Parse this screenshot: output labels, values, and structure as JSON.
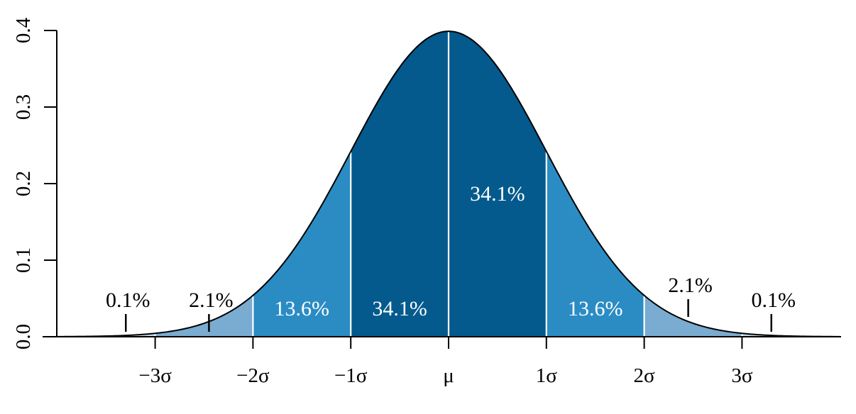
{
  "chart_data": {
    "type": "area",
    "title": "",
    "xlabel": "",
    "ylabel": "",
    "xlim": [
      -4,
      4
    ],
    "ylim": [
      0,
      0.4
    ],
    "curve": "standard normal density",
    "y_ticks": [
      "0.0",
      "0.1",
      "0.2",
      "0.3",
      "0.4"
    ],
    "x_ticks": [
      {
        "x": -3,
        "label": "−3σ"
      },
      {
        "x": -2,
        "label": "−2σ"
      },
      {
        "x": -1,
        "label": "−1σ"
      },
      {
        "x": 0,
        "label": "μ"
      },
      {
        "x": 1,
        "label": "1σ"
      },
      {
        "x": 2,
        "label": "2σ"
      },
      {
        "x": 3,
        "label": "3σ"
      }
    ],
    "regions": [
      {
        "from": -4,
        "to": -3,
        "label": "0.1%",
        "label_x": -3.3,
        "placement": "outside",
        "color": "#c5dbea"
      },
      {
        "from": -3,
        "to": -2,
        "label": "2.1%",
        "label_x": -2.45,
        "placement": "outside",
        "color": "#7aabd0"
      },
      {
        "from": -2,
        "to": -1,
        "label": "13.6%",
        "label_x": -1.5,
        "placement": "inside",
        "color": "#2b8cc4"
      },
      {
        "from": -1,
        "to": 0,
        "label": "34.1%",
        "label_x": -0.5,
        "placement": "inside",
        "color": "#045a8d"
      },
      {
        "from": 0,
        "to": 1,
        "label": "34.1%",
        "label_x": 0.5,
        "placement": "inside",
        "color": "#045a8d"
      },
      {
        "from": 1,
        "to": 2,
        "label": "13.6%",
        "label_x": 1.5,
        "placement": "inside",
        "color": "#2b8cc4"
      },
      {
        "from": 2,
        "to": 3,
        "label": "2.1%",
        "label_x": 2.45,
        "placement": "outside",
        "color": "#7aabd0"
      },
      {
        "from": 3,
        "to": 4,
        "label": "0.1%",
        "label_x": 3.3,
        "placement": "outside",
        "color": "#c5dbea"
      }
    ]
  }
}
